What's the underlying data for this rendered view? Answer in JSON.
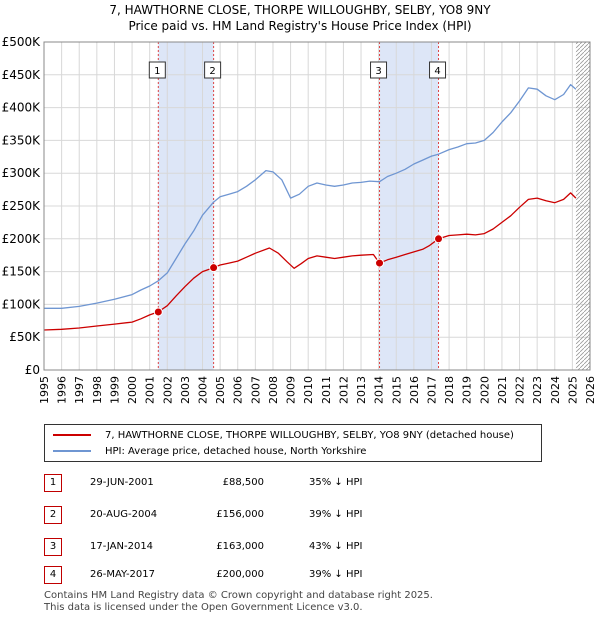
{
  "chart_data": {
    "type": "line",
    "title": "7, HAWTHORNE CLOSE, THORPE WILLOUGHBY, SELBY, YO8 9NY",
    "subtitle": "Price paid vs. HM Land Registry's House Price Index (HPI)",
    "xlim": [
      1995,
      2026
    ],
    "ylim": [
      0,
      500000
    ],
    "x_ticks": [
      "1995",
      "1996",
      "1997",
      "1998",
      "1999",
      "2000",
      "2001",
      "2002",
      "2003",
      "2004",
      "2005",
      "2006",
      "2007",
      "2008",
      "2009",
      "2010",
      "2011",
      "2012",
      "2013",
      "2014",
      "2015",
      "2016",
      "2017",
      "2018",
      "2019",
      "2020",
      "2021",
      "2022",
      "2023",
      "2024",
      "2025",
      "2026"
    ],
    "y_ticks": [
      {
        "value": 0,
        "label": "£0"
      },
      {
        "value": 50000,
        "label": "£50K"
      },
      {
        "value": 100000,
        "label": "£100K"
      },
      {
        "value": 150000,
        "label": "£150K"
      },
      {
        "value": 200000,
        "label": "£200K"
      },
      {
        "value": 250000,
        "label": "£250K"
      },
      {
        "value": 300000,
        "label": "£300K"
      },
      {
        "value": 350000,
        "label": "£350K"
      },
      {
        "value": 400000,
        "label": "£400K"
      },
      {
        "value": 450000,
        "label": "£450K"
      },
      {
        "value": 500000,
        "label": "£500K"
      }
    ],
    "series": [
      {
        "name": "7, HAWTHORNE CLOSE, THORPE WILLOUGHBY, SELBY, YO8 9NY (detached house)",
        "color": "#cc0000",
        "points": [
          [
            1995,
            61000
          ],
          [
            1996,
            62000
          ],
          [
            1997,
            64000
          ],
          [
            1998,
            67000
          ],
          [
            1999,
            70000
          ],
          [
            2000,
            73000
          ],
          [
            2000.5,
            78000
          ],
          [
            2001,
            84000
          ],
          [
            2001.49,
            88500
          ],
          [
            2002,
            98000
          ],
          [
            2002.5,
            113000
          ],
          [
            2003,
            127000
          ],
          [
            2003.5,
            140000
          ],
          [
            2004,
            150000
          ],
          [
            2004.63,
            156000
          ],
          [
            2005,
            160000
          ],
          [
            2005.5,
            163000
          ],
          [
            2006,
            166000
          ],
          [
            2006.5,
            172000
          ],
          [
            2007,
            178000
          ],
          [
            2007.8,
            186000
          ],
          [
            2008.3,
            178000
          ],
          [
            2008.8,
            165000
          ],
          [
            2009.2,
            155000
          ],
          [
            2009.6,
            162000
          ],
          [
            2010,
            170000
          ],
          [
            2010.5,
            174000
          ],
          [
            2011,
            172000
          ],
          [
            2011.5,
            170000
          ],
          [
            2012,
            172000
          ],
          [
            2012.5,
            174000
          ],
          [
            2013,
            175000
          ],
          [
            2013.7,
            176000
          ],
          [
            2014.05,
            163000
          ],
          [
            2014.5,
            168000
          ],
          [
            2015,
            172000
          ],
          [
            2015.5,
            176000
          ],
          [
            2016,
            180000
          ],
          [
            2016.5,
            184000
          ],
          [
            2016.9,
            190000
          ],
          [
            2017.4,
            200000
          ],
          [
            2018,
            205000
          ],
          [
            2018.5,
            206000
          ],
          [
            2019,
            207000
          ],
          [
            2019.5,
            206000
          ],
          [
            2020,
            208000
          ],
          [
            2020.5,
            215000
          ],
          [
            2021,
            225000
          ],
          [
            2021.5,
            235000
          ],
          [
            2022,
            248000
          ],
          [
            2022.5,
            260000
          ],
          [
            2023,
            262000
          ],
          [
            2023.5,
            258000
          ],
          [
            2024,
            255000
          ],
          [
            2024.5,
            260000
          ],
          [
            2024.9,
            270000
          ],
          [
            2025.2,
            262000
          ]
        ]
      },
      {
        "name": "HPI: Average price, detached house, North Yorkshire",
        "color": "#6f96d2",
        "points": [
          [
            1995,
            94000
          ],
          [
            1996,
            94000
          ],
          [
            1997,
            97000
          ],
          [
            1998,
            102000
          ],
          [
            1999,
            108000
          ],
          [
            2000,
            115000
          ],
          [
            2000.5,
            122000
          ],
          [
            2001,
            128000
          ],
          [
            2001.49,
            136000
          ],
          [
            2002,
            148000
          ],
          [
            2002.5,
            170000
          ],
          [
            2003,
            192000
          ],
          [
            2003.5,
            212000
          ],
          [
            2004,
            236000
          ],
          [
            2004.63,
            256000
          ],
          [
            2005,
            264000
          ],
          [
            2005.5,
            268000
          ],
          [
            2006,
            272000
          ],
          [
            2006.5,
            280000
          ],
          [
            2007,
            290000
          ],
          [
            2007.6,
            304000
          ],
          [
            2008,
            302000
          ],
          [
            2008.5,
            290000
          ],
          [
            2009,
            262000
          ],
          [
            2009.5,
            268000
          ],
          [
            2010,
            280000
          ],
          [
            2010.5,
            285000
          ],
          [
            2011,
            282000
          ],
          [
            2011.5,
            280000
          ],
          [
            2012,
            282000
          ],
          [
            2012.5,
            285000
          ],
          [
            2013,
            286000
          ],
          [
            2013.5,
            288000
          ],
          [
            2014.05,
            287000
          ],
          [
            2014.5,
            295000
          ],
          [
            2015,
            300000
          ],
          [
            2015.5,
            306000
          ],
          [
            2016,
            314000
          ],
          [
            2016.5,
            320000
          ],
          [
            2017,
            326000
          ],
          [
            2017.4,
            329000
          ],
          [
            2018,
            336000
          ],
          [
            2018.5,
            340000
          ],
          [
            2019,
            345000
          ],
          [
            2019.5,
            346000
          ],
          [
            2020,
            350000
          ],
          [
            2020.5,
            362000
          ],
          [
            2021,
            378000
          ],
          [
            2021.5,
            392000
          ],
          [
            2022,
            410000
          ],
          [
            2022.5,
            430000
          ],
          [
            2023,
            428000
          ],
          [
            2023.5,
            418000
          ],
          [
            2024,
            412000
          ],
          [
            2024.5,
            420000
          ],
          [
            2024.9,
            435000
          ],
          [
            2025.2,
            428000
          ]
        ]
      }
    ],
    "sales": [
      {
        "id": "1",
        "x": 2001.49,
        "value": 88500
      },
      {
        "id": "2",
        "x": 2004.63,
        "value": 156000
      },
      {
        "id": "3",
        "x": 2014.05,
        "value": 163000
      },
      {
        "id": "4",
        "x": 2017.4,
        "value": 200000
      }
    ],
    "shaded_periods": [
      [
        2001.49,
        2004.63
      ],
      [
        2014.05,
        2017.4
      ]
    ],
    "hatched_from": 2025.2
  },
  "legend": {
    "property_label": "7, HAWTHORNE CLOSE, THORPE WILLOUGHBY, SELBY, YO8 9NY (detached house)",
    "hpi_label": "HPI: Average price, detached house, North Yorkshire"
  },
  "sales_table": [
    {
      "id": "1",
      "date": "29-JUN-2001",
      "price": "£88,500",
      "hpi": "35% ↓ HPI"
    },
    {
      "id": "2",
      "date": "20-AUG-2004",
      "price": "£156,000",
      "hpi": "39% ↓ HPI"
    },
    {
      "id": "3",
      "date": "17-JAN-2014",
      "price": "£163,000",
      "hpi": "43% ↓ HPI"
    },
    {
      "id": "4",
      "date": "26-MAY-2017",
      "price": "£200,000",
      "hpi": "39% ↓ HPI"
    }
  ],
  "footer": {
    "line1": "Contains HM Land Registry data © Crown copyright and database right 2025.",
    "line2": "This data is licensed under the Open Government Licence v3.0."
  },
  "colors": {
    "property": "#cc0000",
    "hpi": "#6f96d2",
    "shade": "#dde6f7",
    "grid": "#d8d8d8"
  }
}
